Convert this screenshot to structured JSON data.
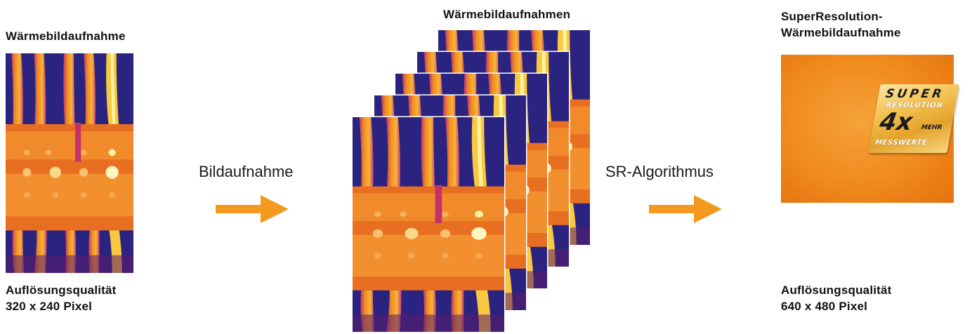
{
  "left": {
    "title": "Wärmebildaufnahme",
    "caption_line1": "Auflösungsqualität",
    "caption_line2": "320 x 240 Pixel"
  },
  "step1_label": "Bildaufnahme",
  "middle": {
    "title": "Wärmebildaufnahmen",
    "frame_count": 5
  },
  "step2_label": "SR-Algorithmus",
  "right": {
    "title_line1": "SuperResolution-",
    "title_line2": "Wärmebildaufnahme",
    "caption_line1": "Auflösungsqualität",
    "caption_line2": "640 x 480 Pixel",
    "badge": {
      "line1": "SUPER",
      "line2": "RESOLUTION",
      "line3": "4x",
      "line4": "MEHR",
      "line5": "MESSWERTE"
    }
  },
  "colors": {
    "arrow": "#f39a1e",
    "thermal_background": "#2a1f7a",
    "thermal_wire": "#f08a1e",
    "thermal_hot": "#fff3a0",
    "sr_box": "#f08a1e"
  },
  "icons": [
    "arrow-right-icon",
    "arrow-right-icon"
  ]
}
